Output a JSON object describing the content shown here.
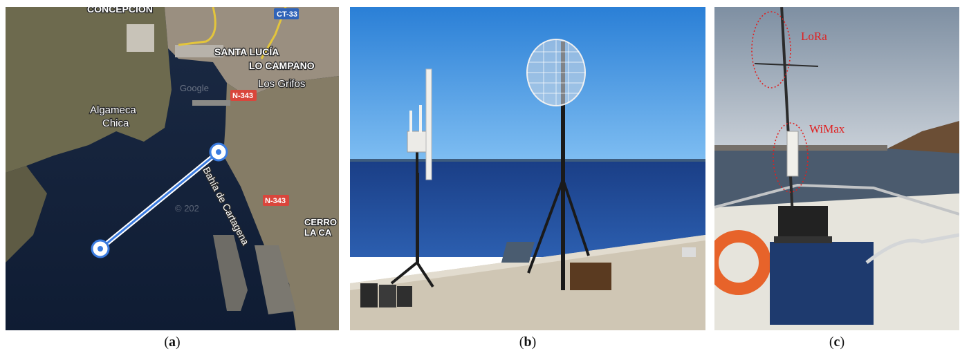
{
  "panel_a": {
    "places": {
      "concepcion": "CONCEPCIÓN",
      "santa_lucia": "SANTA LUCÍA",
      "lo_campano": "LO CAMPANO",
      "los_grifos": "Los Grifos",
      "algameca": "Algameca",
      "chica": "Chica",
      "bahia": "Bahía de Cartagena",
      "cerro": "CERRO",
      "la_ca": "LA CA"
    },
    "roads": {
      "ct33": "CT-33",
      "n343_top": "N-343",
      "n343_bottom": "N-343"
    },
    "watermark_google": "Google",
    "watermark_year": "© 202",
    "colors": {
      "link": "#3a7be0",
      "road_shield_red": "#d9463c",
      "road_shield_blue": "#2f63b8"
    }
  },
  "panel_c": {
    "labels": {
      "lora": "LoRa",
      "wimax": "WiMax"
    },
    "colors": {
      "annotation": "#e02020"
    }
  },
  "captions": {
    "a": "a",
    "b": "b",
    "c": "c"
  }
}
